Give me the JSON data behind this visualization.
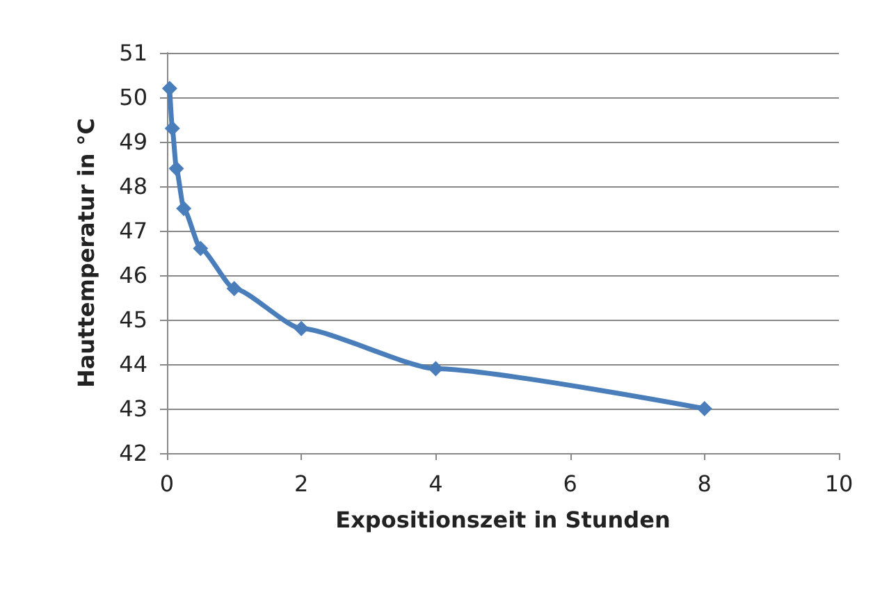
{
  "chart_data": {
    "type": "line",
    "xlabel": "Expositionszeit in Stunden",
    "ylabel": "Hauttemperatur in °C",
    "x": [
      0.04,
      0.08,
      0.14,
      0.25,
      0.5,
      1,
      2,
      4,
      8
    ],
    "series": [
      {
        "color": "#4a7ebb",
        "values": [
          50.2,
          49.3,
          48.4,
          47.5,
          46.6,
          45.7,
          44.8,
          43.9,
          43.0
        ]
      }
    ],
    "xlim": [
      0,
      10
    ],
    "xticks": [
      0,
      2,
      4,
      6,
      8,
      10
    ],
    "ylim": [
      42,
      51
    ],
    "yticks": [
      42,
      43,
      44,
      45,
      46,
      47,
      48,
      49,
      50,
      51
    ],
    "grid": "y",
    "marker": "diamond",
    "line_style": "solid"
  }
}
